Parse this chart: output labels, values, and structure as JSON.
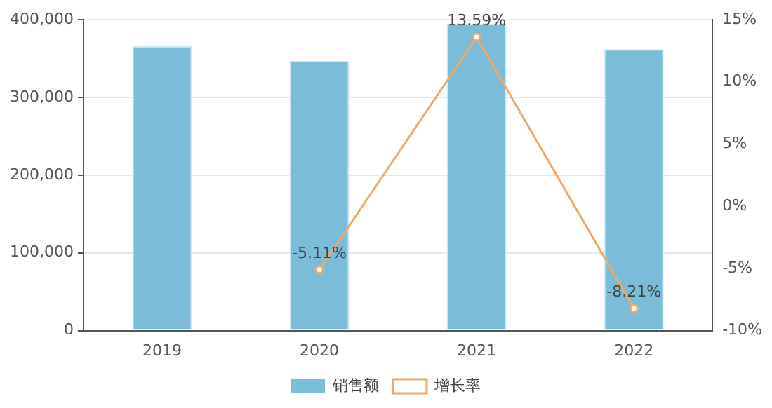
{
  "chart_data": {
    "type": "bar",
    "categories": [
      "2019",
      "2020",
      "2021",
      "2022"
    ],
    "series": [
      {
        "name": "销售额",
        "color": "#7bbcd9",
        "values": [
          366000,
          347000,
          395000,
          362000
        ]
      },
      {
        "name": "增长率",
        "type": "line",
        "axis": "y2",
        "color": "#f0a868",
        "values": [
          null,
          -5.11,
          13.59,
          -8.21
        ],
        "value_labels": [
          null,
          "-5.11%",
          "13.59%",
          "-8.21%"
        ]
      }
    ],
    "ylim": [
      0,
      400000
    ],
    "yticks": [
      {
        "value": 0,
        "label": "0"
      },
      {
        "value": 100000,
        "label": "100,000"
      },
      {
        "value": 200000,
        "label": "200,000"
      },
      {
        "value": 300000,
        "label": "300,000"
      },
      {
        "value": 400000,
        "label": "400,000"
      }
    ],
    "y2lim": [
      -10,
      15
    ],
    "y2ticks": [
      {
        "value": -10,
        "label": "-10%"
      },
      {
        "value": -5,
        "label": "-5%"
      },
      {
        "value": 0,
        "label": "0%"
      },
      {
        "value": 5,
        "label": "5%"
      },
      {
        "value": 10,
        "label": "10%"
      },
      {
        "value": 15,
        "label": "15%"
      }
    ],
    "grid": "y",
    "legend": "bottom",
    "marker": "circle",
    "line_style": "solid"
  }
}
